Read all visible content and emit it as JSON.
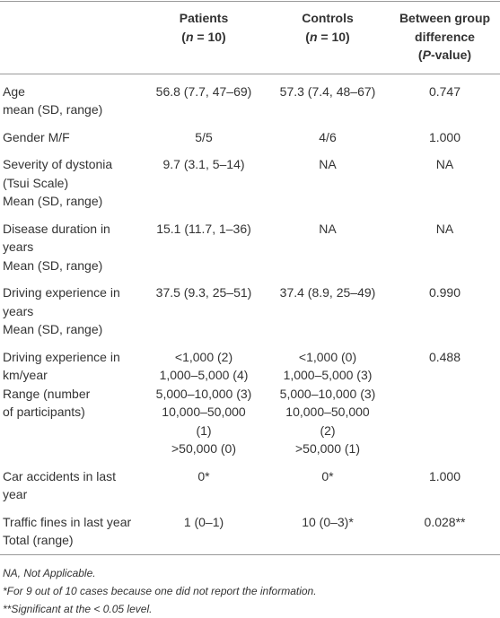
{
  "table": {
    "header": [
      {
        "lines": [
          "Patients"
        ],
        "sub": [
          "(",
          "n",
          " = 10)"
        ]
      },
      {
        "lines": [
          "Controls"
        ],
        "sub": [
          "(",
          "n",
          " = 10)"
        ]
      },
      {
        "lines": [
          "Between group",
          "difference"
        ],
        "sub": [
          "(",
          "P",
          "-value)"
        ]
      }
    ],
    "rows": [
      {
        "label": [
          "Age",
          "mean (SD, range)"
        ],
        "cells": [
          [
            "56.8 (7.7, 47–69)"
          ],
          [
            "57.3 (7.4, 48–67)"
          ],
          [
            "0.747"
          ]
        ]
      },
      {
        "label": [
          "Gender M/F"
        ],
        "cells": [
          [
            "5/5"
          ],
          [
            "4/6"
          ],
          [
            "1.000"
          ]
        ]
      },
      {
        "label": [
          "Severity of dystonia",
          "(Tsui Scale)",
          "Mean (SD, range)"
        ],
        "cells": [
          [
            "9.7 (3.1, 5–14)"
          ],
          [
            "NA"
          ],
          [
            "NA"
          ]
        ]
      },
      {
        "label": [
          "Disease duration in",
          "years",
          "Mean (SD, range)"
        ],
        "cells": [
          [
            "15.1 (11.7, 1–36)"
          ],
          [
            "NA"
          ],
          [
            "NA"
          ]
        ]
      },
      {
        "label": [
          "Driving experience in",
          "years",
          "Mean (SD, range)"
        ],
        "cells": [
          [
            "37.5 (9.3, 25–51)"
          ],
          [
            "37.4 (8.9, 25–49)"
          ],
          [
            "0.990"
          ]
        ]
      },
      {
        "label": [
          "Driving experience in",
          "km/year",
          "Range (number",
          "of participants)"
        ],
        "cells": [
          [
            "<1,000 (2)",
            "1,000–5,000 (4)",
            "5,000–10,000 (3)",
            "10,000–50,000",
            "(1)",
            ">50,000 (0)"
          ],
          [
            "<1,000 (0)",
            "1,000–5,000 (3)",
            "5,000–10,000 (3)",
            "10,000–50,000",
            "(2)",
            ">50,000 (1)"
          ],
          [
            "0.488"
          ]
        ]
      },
      {
        "label": [
          "Car accidents in last",
          "year"
        ],
        "cells": [
          [
            "0*"
          ],
          [
            "0*"
          ],
          [
            "1.000"
          ]
        ]
      },
      {
        "label": [
          "Traffic fines in last year",
          "Total (range)"
        ],
        "cells": [
          [
            "1 (0–1)"
          ],
          [
            "10 (0–3)*"
          ],
          [
            "0.028**"
          ]
        ]
      }
    ],
    "footnotes": [
      "NA, Not Applicable.",
      "*For 9 out of 10 cases because one did not report the information.",
      "**Significant at the < 0.05 level."
    ]
  }
}
